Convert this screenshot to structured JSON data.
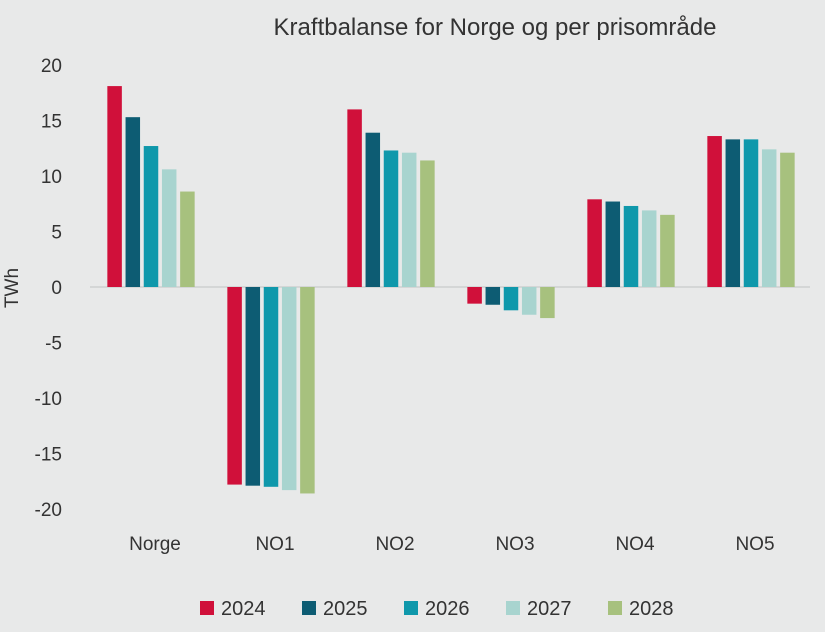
{
  "chart_data": {
    "type": "bar",
    "title": "Kraftbalanse for Norge og per prisområde",
    "ylabel": "TWh",
    "xlabel": "",
    "ylim": [
      -20,
      20
    ],
    "yticks": [
      20,
      15,
      10,
      5,
      0,
      -5,
      -10,
      -15,
      -20
    ],
    "categories": [
      "Norge",
      "NO1",
      "NO2",
      "NO3",
      "NO4",
      "NO5"
    ],
    "series": [
      {
        "name": "2024",
        "color": "#d0103a",
        "values": [
          18.1,
          -17.8,
          16.0,
          -1.5,
          7.9,
          13.6
        ]
      },
      {
        "name": "2025",
        "color": "#0d5c73",
        "values": [
          15.3,
          -17.9,
          13.9,
          -1.6,
          7.7,
          13.3
        ]
      },
      {
        "name": "2026",
        "color": "#0f98ab",
        "values": [
          12.7,
          -18.0,
          12.3,
          -2.1,
          7.3,
          13.3
        ]
      },
      {
        "name": "2027",
        "color": "#a8d4cf",
        "values": [
          10.6,
          -18.3,
          12.1,
          -2.5,
          6.9,
          12.4
        ]
      },
      {
        "name": "2028",
        "color": "#a7c17e",
        "values": [
          8.6,
          -18.6,
          11.4,
          -2.8,
          6.5,
          12.1
        ]
      }
    ],
    "grid": false,
    "zero_line": true,
    "legend_position": "bottom"
  }
}
